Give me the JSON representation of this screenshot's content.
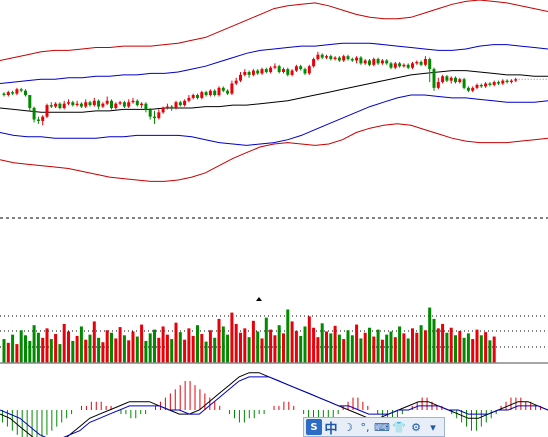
{
  "chart_data": {
    "type": "candlestick",
    "title": "",
    "price_panel": {
      "ylim": [
        0,
        100
      ],
      "candles": [
        {
          "o": 65,
          "c": 64,
          "h": 66,
          "l": 63
        },
        {
          "o": 64,
          "c": 66,
          "h": 67,
          "l": 63
        },
        {
          "o": 66,
          "c": 65,
          "h": 67,
          "l": 64
        },
        {
          "o": 65,
          "c": 68,
          "h": 69,
          "l": 64
        },
        {
          "o": 68,
          "c": 67,
          "h": 69,
          "l": 66
        },
        {
          "o": 67,
          "c": 64,
          "h": 68,
          "l": 63
        },
        {
          "o": 64,
          "c": 55,
          "h": 64,
          "l": 53
        },
        {
          "o": 55,
          "c": 47,
          "h": 56,
          "l": 45
        },
        {
          "o": 47,
          "c": 46,
          "h": 49,
          "l": 44
        },
        {
          "o": 46,
          "c": 49,
          "h": 50,
          "l": 43
        },
        {
          "o": 49,
          "c": 57,
          "h": 58,
          "l": 48
        },
        {
          "o": 57,
          "c": 56,
          "h": 59,
          "l": 55
        },
        {
          "o": 56,
          "c": 58,
          "h": 59,
          "l": 55
        },
        {
          "o": 58,
          "c": 55,
          "h": 59,
          "l": 54
        },
        {
          "o": 55,
          "c": 58,
          "h": 60,
          "l": 54
        },
        {
          "o": 58,
          "c": 59,
          "h": 61,
          "l": 57
        },
        {
          "o": 59,
          "c": 57,
          "h": 60,
          "l": 56
        },
        {
          "o": 57,
          "c": 58,
          "h": 60,
          "l": 56
        },
        {
          "o": 58,
          "c": 56,
          "h": 59,
          "l": 55
        },
        {
          "o": 56,
          "c": 59,
          "h": 61,
          "l": 55
        },
        {
          "o": 59,
          "c": 57,
          "h": 60,
          "l": 56
        },
        {
          "o": 57,
          "c": 60,
          "h": 62,
          "l": 56
        },
        {
          "o": 60,
          "c": 56,
          "h": 61,
          "l": 54
        },
        {
          "o": 56,
          "c": 58,
          "h": 59,
          "l": 55
        },
        {
          "o": 58,
          "c": 60,
          "h": 63,
          "l": 57
        },
        {
          "o": 60,
          "c": 55,
          "h": 61,
          "l": 54
        },
        {
          "o": 55,
          "c": 58,
          "h": 59,
          "l": 54
        },
        {
          "o": 58,
          "c": 59,
          "h": 60,
          "l": 57
        },
        {
          "o": 59,
          "c": 56,
          "h": 60,
          "l": 55
        },
        {
          "o": 56,
          "c": 59,
          "h": 61,
          "l": 55
        },
        {
          "o": 59,
          "c": 60,
          "h": 62,
          "l": 58
        },
        {
          "o": 60,
          "c": 57,
          "h": 61,
          "l": 56
        },
        {
          "o": 57,
          "c": 58,
          "h": 59,
          "l": 55
        },
        {
          "o": 58,
          "c": 54,
          "h": 59,
          "l": 52
        },
        {
          "o": 54,
          "c": 49,
          "h": 55,
          "l": 47
        },
        {
          "o": 49,
          "c": 48,
          "h": 53,
          "l": 44
        },
        {
          "o": 48,
          "c": 52,
          "h": 54,
          "l": 47
        },
        {
          "o": 52,
          "c": 55,
          "h": 56,
          "l": 51
        },
        {
          "o": 55,
          "c": 56,
          "h": 58,
          "l": 54
        },
        {
          "o": 56,
          "c": 55,
          "h": 57,
          "l": 53
        },
        {
          "o": 55,
          "c": 59,
          "h": 60,
          "l": 54
        },
        {
          "o": 59,
          "c": 57,
          "h": 60,
          "l": 56
        },
        {
          "o": 57,
          "c": 60,
          "h": 61,
          "l": 56
        },
        {
          "o": 60,
          "c": 62,
          "h": 64,
          "l": 59
        },
        {
          "o": 62,
          "c": 64,
          "h": 65,
          "l": 61
        },
        {
          "o": 64,
          "c": 62,
          "h": 65,
          "l": 61
        },
        {
          "o": 62,
          "c": 66,
          "h": 67,
          "l": 61
        },
        {
          "o": 66,
          "c": 64,
          "h": 67,
          "l": 63
        },
        {
          "o": 64,
          "c": 67,
          "h": 68,
          "l": 63
        },
        {
          "o": 67,
          "c": 64,
          "h": 68,
          "l": 63
        },
        {
          "o": 64,
          "c": 69,
          "h": 70,
          "l": 63
        },
        {
          "o": 69,
          "c": 67,
          "h": 70,
          "l": 66
        },
        {
          "o": 67,
          "c": 65,
          "h": 68,
          "l": 64
        },
        {
          "o": 65,
          "c": 72,
          "h": 74,
          "l": 64
        },
        {
          "o": 72,
          "c": 74,
          "h": 76,
          "l": 71
        },
        {
          "o": 74,
          "c": 78,
          "h": 80,
          "l": 73
        },
        {
          "o": 78,
          "c": 80,
          "h": 82,
          "l": 77
        },
        {
          "o": 80,
          "c": 78,
          "h": 81,
          "l": 76
        },
        {
          "o": 78,
          "c": 81,
          "h": 82,
          "l": 77
        },
        {
          "o": 81,
          "c": 79,
          "h": 82,
          "l": 78
        },
        {
          "o": 79,
          "c": 82,
          "h": 83,
          "l": 78
        },
        {
          "o": 82,
          "c": 80,
          "h": 83,
          "l": 79
        },
        {
          "o": 80,
          "c": 83,
          "h": 84,
          "l": 79
        },
        {
          "o": 83,
          "c": 84,
          "h": 86,
          "l": 82
        },
        {
          "o": 84,
          "c": 80,
          "h": 85,
          "l": 79
        },
        {
          "o": 80,
          "c": 82,
          "h": 83,
          "l": 79
        },
        {
          "o": 82,
          "c": 78,
          "h": 83,
          "l": 77
        },
        {
          "o": 78,
          "c": 81,
          "h": 82,
          "l": 77
        },
        {
          "o": 81,
          "c": 84,
          "h": 85,
          "l": 80
        },
        {
          "o": 84,
          "c": 82,
          "h": 85,
          "l": 81
        },
        {
          "o": 82,
          "c": 79,
          "h": 83,
          "l": 78
        },
        {
          "o": 79,
          "c": 84,
          "h": 85,
          "l": 78
        },
        {
          "o": 84,
          "c": 89,
          "h": 90,
          "l": 83
        },
        {
          "o": 89,
          "c": 92,
          "h": 94,
          "l": 88
        },
        {
          "o": 92,
          "c": 90,
          "h": 93,
          "l": 89
        },
        {
          "o": 90,
          "c": 91,
          "h": 92,
          "l": 89
        },
        {
          "o": 91,
          "c": 89,
          "h": 92,
          "l": 88
        },
        {
          "o": 89,
          "c": 90,
          "h": 91,
          "l": 88
        },
        {
          "o": 90,
          "c": 88,
          "h": 91,
          "l": 87
        },
        {
          "o": 88,
          "c": 91,
          "h": 92,
          "l": 87
        },
        {
          "o": 91,
          "c": 89,
          "h": 92,
          "l": 88
        },
        {
          "o": 89,
          "c": 88,
          "h": 90,
          "l": 87
        },
        {
          "o": 88,
          "c": 90,
          "h": 91,
          "l": 86
        },
        {
          "o": 90,
          "c": 86,
          "h": 91,
          "l": 85
        },
        {
          "o": 86,
          "c": 88,
          "h": 89,
          "l": 85
        },
        {
          "o": 88,
          "c": 85,
          "h": 89,
          "l": 84
        },
        {
          "o": 85,
          "c": 89,
          "h": 90,
          "l": 84
        },
        {
          "o": 89,
          "c": 86,
          "h": 90,
          "l": 85
        },
        {
          "o": 86,
          "c": 88,
          "h": 89,
          "l": 85
        },
        {
          "o": 88,
          "c": 86,
          "h": 89,
          "l": 85
        },
        {
          "o": 86,
          "c": 83,
          "h": 87,
          "l": 82
        },
        {
          "o": 83,
          "c": 86,
          "h": 87,
          "l": 82
        },
        {
          "o": 86,
          "c": 84,
          "h": 87,
          "l": 83
        },
        {
          "o": 84,
          "c": 85,
          "h": 86,
          "l": 83
        },
        {
          "o": 85,
          "c": 83,
          "h": 86,
          "l": 82
        },
        {
          "o": 83,
          "c": 86,
          "h": 87,
          "l": 82
        },
        {
          "o": 86,
          "c": 87,
          "h": 88,
          "l": 85
        },
        {
          "o": 87,
          "c": 85,
          "h": 88,
          "l": 84
        },
        {
          "o": 85,
          "c": 89,
          "h": 91,
          "l": 84
        },
        {
          "o": 89,
          "c": 82,
          "h": 90,
          "l": 73
        },
        {
          "o": 82,
          "c": 69,
          "h": 83,
          "l": 67
        },
        {
          "o": 69,
          "c": 73,
          "h": 76,
          "l": 68
        },
        {
          "o": 73,
          "c": 77,
          "h": 78,
          "l": 72
        },
        {
          "o": 77,
          "c": 74,
          "h": 78,
          "l": 73
        },
        {
          "o": 74,
          "c": 76,
          "h": 77,
          "l": 72
        },
        {
          "o": 76,
          "c": 73,
          "h": 77,
          "l": 72
        },
        {
          "o": 73,
          "c": 75,
          "h": 76,
          "l": 72
        },
        {
          "o": 75,
          "c": 69,
          "h": 76,
          "l": 68
        },
        {
          "o": 69,
          "c": 67,
          "h": 70,
          "l": 66
        },
        {
          "o": 67,
          "c": 69,
          "h": 70,
          "l": 66
        },
        {
          "o": 69,
          "c": 71,
          "h": 72,
          "l": 68
        },
        {
          "o": 71,
          "c": 70,
          "h": 72,
          "l": 69
        },
        {
          "o": 70,
          "c": 72,
          "h": 73,
          "l": 69
        },
        {
          "o": 72,
          "c": 71,
          "h": 73,
          "l": 70
        },
        {
          "o": 71,
          "c": 73,
          "h": 74,
          "l": 70
        },
        {
          "o": 73,
          "c": 72,
          "h": 74,
          "l": 71
        },
        {
          "o": 72,
          "c": 74,
          "h": 75,
          "l": 71
        },
        {
          "o": 74,
          "c": 73,
          "h": 75,
          "l": 72
        },
        {
          "o": 73,
          "c": 74,
          "h": 75,
          "l": 72
        },
        {
          "o": 74,
          "c": 75,
          "h": 76,
          "l": 73
        }
      ],
      "ma_mid": [
        55,
        54,
        53,
        52,
        52,
        52,
        52,
        53,
        53,
        54,
        54,
        54,
        55,
        55,
        55,
        56,
        56,
        57,
        57,
        58,
        59,
        60,
        62,
        64,
        66,
        68,
        70,
        72,
        74,
        76,
        78,
        79,
        80,
        81,
        81,
        80,
        79,
        78,
        78,
        77,
        77
      ],
      "band_blue_upper": [
        72,
        73,
        74,
        75,
        75,
        76,
        76,
        77,
        77,
        78,
        78,
        79,
        79,
        80,
        82,
        84,
        87,
        90,
        93,
        95,
        96,
        97,
        98,
        98,
        99,
        100,
        100,
        100,
        99,
        98,
        97,
        96,
        95,
        95,
        96,
        98,
        99,
        99,
        98,
        97,
        96
      ],
      "band_blue_lower": [
        38,
        36,
        35,
        35,
        34,
        34,
        34,
        34,
        35,
        35,
        36,
        36,
        36,
        36,
        35,
        33,
        31,
        30,
        29,
        30,
        31,
        33,
        36,
        40,
        44,
        48,
        52,
        56,
        59,
        62,
        64,
        64,
        63,
        62,
        62,
        61,
        60,
        59,
        59,
        59,
        60
      ],
      "band_red_upper": [
        88,
        90,
        92,
        94,
        95,
        95,
        96,
        97,
        97,
        98,
        98,
        98,
        99,
        100,
        102,
        104,
        108,
        112,
        116,
        120,
        124,
        126,
        127,
        128,
        126,
        123,
        120,
        118,
        117,
        117,
        118,
        121,
        124,
        127,
        129,
        130,
        129,
        128,
        126,
        124,
        122
      ],
      "band_red_lower": [
        19,
        17,
        16,
        15,
        14,
        13,
        11,
        9,
        7,
        6,
        5,
        4,
        4,
        5,
        7,
        10,
        15,
        20,
        24,
        28,
        30,
        31,
        30,
        29,
        30,
        33,
        38,
        41,
        43,
        44,
        43,
        40,
        37,
        34,
        32,
        31,
        31,
        31,
        32,
        33,
        34
      ]
    },
    "volume_panel": {
      "ylim": [
        0,
        100
      ],
      "values": [
        38,
        32,
        45,
        30,
        52,
        44,
        35,
        60,
        48,
        40,
        55,
        38,
        46,
        30,
        62,
        50,
        35,
        43,
        58,
        37,
        45,
        66,
        40,
        33,
        52,
        48,
        39,
        57,
        44,
        36,
        50,
        42,
        61,
        35,
        47,
        53,
        40,
        58,
        45,
        38,
        64,
        49,
        37,
        55,
        43,
        60,
        46,
        34,
        52,
        40,
        70,
        58,
        45,
        80,
        62,
        48,
        55,
        41,
        67,
        50,
        39,
        72,
        53,
        44,
        60,
        47,
        85,
        66,
        51,
        43,
        58,
        74,
        56,
        41,
        63,
        50,
        47,
        59,
        45,
        38,
        52,
        44,
        61,
        39,
        48,
        56,
        42,
        53,
        37,
        45,
        50,
        41,
        58,
        47,
        39,
        55,
        48,
        60,
        52,
        88,
        70,
        55,
        62,
        48,
        56,
        44,
        51,
        40,
        47,
        38,
        53,
        44,
        49,
        36,
        42
      ]
    },
    "macd_panel": {
      "ylim": [
        -10,
        10
      ],
      "histogram": [
        -3,
        -4,
        -5,
        -6,
        -7,
        -7,
        -8,
        -8,
        -7,
        -6,
        -5,
        -4,
        -3,
        -2,
        -1,
        0,
        1,
        1,
        2,
        2,
        2,
        1,
        1,
        0,
        -1,
        -1,
        -2,
        -2,
        -1,
        -1,
        0,
        1,
        2,
        3,
        4,
        5,
        6,
        7,
        7,
        6,
        5,
        4,
        3,
        2,
        1,
        0,
        -1,
        -2,
        -3,
        -3,
        -2,
        -2,
        -1,
        -1,
        0,
        1,
        1,
        2,
        2,
        1,
        0,
        -1,
        -2,
        -3,
        -4,
        -4,
        -3,
        -2,
        -1,
        1,
        2,
        3,
        3,
        2,
        1,
        0,
        -1,
        -2,
        -3,
        -3,
        -2,
        -1,
        0,
        1,
        2,
        3,
        3,
        2,
        1,
        1,
        0,
        -1,
        -2,
        -3,
        -4,
        -5,
        -5,
        -4,
        -3,
        -2,
        -1,
        1,
        2,
        3,
        3,
        3,
        2,
        2,
        1,
        1,
        0
      ],
      "dif": [
        -1,
        -2,
        -4,
        -6,
        -8,
        -9,
        -8,
        -6,
        -4,
        -2,
        -1,
        0,
        1,
        2,
        2,
        2,
        1,
        0,
        -1,
        -1,
        0,
        2,
        4,
        6,
        8,
        9,
        9,
        8,
        7,
        6,
        5,
        4,
        3,
        2,
        1,
        0,
        -1,
        -2,
        -2,
        -1,
        0,
        1,
        2,
        2,
        1,
        0,
        -1,
        -2,
        -2,
        -1,
        0,
        1,
        2,
        2,
        1,
        0
      ],
      "dea": [
        0,
        -1,
        -2,
        -4,
        -6,
        -7,
        -7,
        -6,
        -5,
        -3,
        -2,
        -1,
        0,
        1,
        1,
        1,
        1,
        0,
        0,
        -1,
        -1,
        1,
        3,
        5,
        7,
        8,
        8,
        8,
        7,
        6,
        5,
        4,
        3,
        2,
        1,
        1,
        0,
        -1,
        -1,
        -1,
        0,
        0,
        1,
        1,
        1,
        0,
        0,
        -1,
        -1,
        -1,
        0,
        0,
        1,
        1,
        1,
        0
      ]
    },
    "colors": {
      "up": "#e8000b",
      "down": "#008a00",
      "band_red": "#c80000",
      "band_blue": "#0000c8",
      "ma": "#000000",
      "grid": "#000000"
    }
  },
  "ime_toolbar": {
    "logo_icon": "sougou-logo-icon",
    "mode_label": "中",
    "items": [
      {
        "name": "halfwidth-moon-icon",
        "glyph": "☽"
      },
      {
        "name": "punctuation-icon",
        "glyph": "°,"
      },
      {
        "name": "keyboard-icon",
        "glyph": "⌨"
      },
      {
        "name": "skin-icon",
        "glyph": "👕"
      },
      {
        "name": "tools-icon",
        "glyph": "⚙"
      },
      {
        "name": "menu-dropdown-icon",
        "glyph": "▾"
      }
    ]
  }
}
